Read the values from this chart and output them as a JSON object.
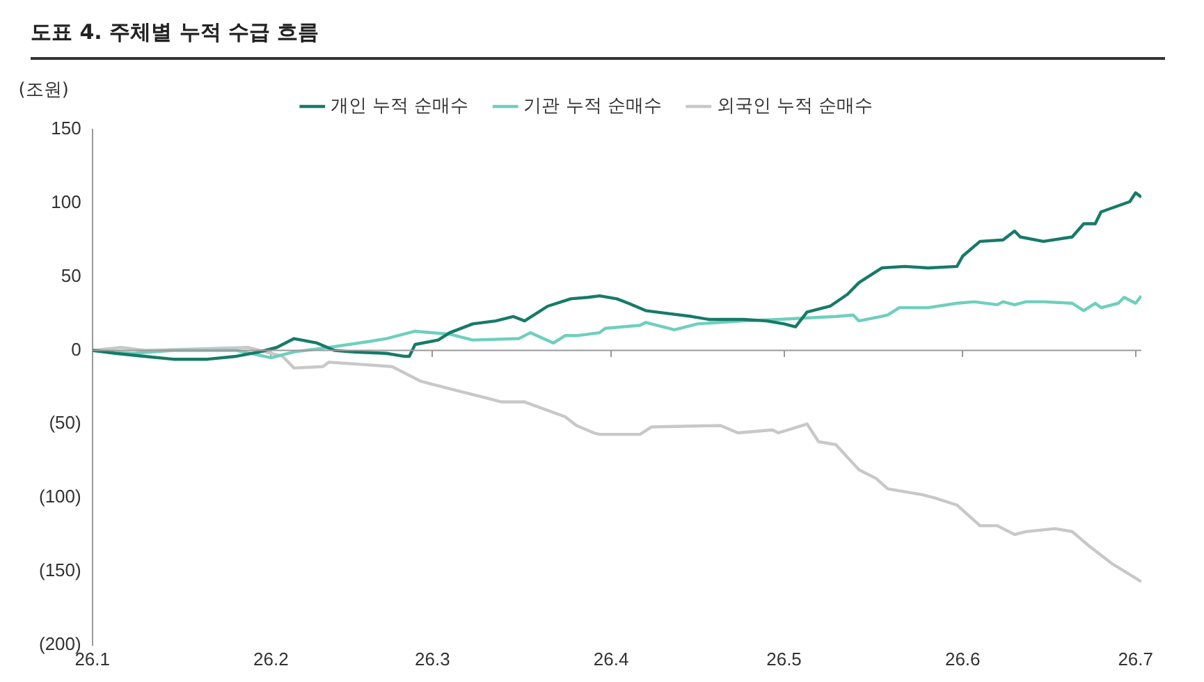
{
  "chart_data": {
    "type": "line",
    "title": "도표 4. 주체별 누적 수급 흐름",
    "ylabel": "(조원)",
    "xlim": [
      "--01-01",
      "--07-02"
    ],
    "xticks": [
      {
        "value": "--01-01",
        "label": "26.1"
      },
      {
        "value": "--02-01",
        "label": "26.2"
      },
      {
        "value": "--03-01",
        "label": "26.3"
      },
      {
        "value": "--04-01",
        "label": "26.4"
      },
      {
        "value": "--05-01",
        "label": "26.5"
      },
      {
        "value": "--06-01",
        "label": "26.6"
      },
      {
        "value": "--07-01",
        "label": "26.7"
      }
    ],
    "ylim": [
      -200,
      150
    ],
    "yticks": [
      150,
      100,
      50,
      0,
      {
        "value": -50,
        "label": "(50)"
      },
      {
        "value": -100,
        "label": "(100)"
      },
      {
        "value": -150,
        "label": "(150)"
      },
      {
        "value": -200,
        "label": "(200)"
      }
    ],
    "ref_lines": [
      {
        "axis": "y",
        "value": 0,
        "color": "#999999"
      }
    ],
    "grid": false,
    "legend": "top",
    "marker": "none",
    "line_style": "solid",
    "series": [
      {
        "name": "개인 누적 순매수",
        "color": "#177a69",
        "x": [
          "--01-01",
          "--01-05",
          "--01-10",
          "--01-15",
          "--01-21",
          "--01-26",
          "--01-30",
          "--02-02",
          "--02-05",
          "--02-09",
          "--02-12",
          "--02-15",
          "--02-21",
          "--02-24",
          "--02-25",
          "--02-26",
          "--03-02",
          "--03-04",
          "--03-08",
          "--03-12",
          "--03-15",
          "--03-17",
          "--03-21",
          "--03-25",
          "--03-28",
          "--03-30",
          "--04-02",
          "--04-04",
          "--04-07",
          "--04-11",
          "--04-15",
          "--04-18",
          "--04-24",
          "--04-28",
          "--05-01",
          "--05-03",
          "--05-05",
          "--05-09",
          "--05-12",
          "--05-14",
          "--05-18",
          "--05-22",
          "--05-26",
          "--05-31",
          "--06-01",
          "--06-04",
          "--06-08",
          "--06-10",
          "--06-11",
          "--06-15",
          "--06-20",
          "--06-22",
          "--06-24",
          "--06-25",
          "--06-30",
          "--07-01",
          "--07-02"
        ],
        "values": [
          0,
          -2,
          -4,
          -6,
          -6,
          -4,
          -1,
          2,
          8,
          5,
          0,
          -1,
          -2,
          -4,
          -4,
          4,
          7,
          12,
          18,
          20,
          23,
          20,
          30,
          35,
          36,
          37,
          35,
          32,
          27,
          25,
          23,
          21,
          21,
          20,
          18,
          16,
          26,
          30,
          38,
          46,
          56,
          57,
          56,
          57,
          64,
          74,
          75,
          81,
          77,
          74,
          77,
          86,
          86,
          94,
          101,
          107,
          104
        ]
      },
      {
        "name": "기관 누적 순매수",
        "color": "#6fcfbd",
        "x": [
          "--01-01",
          "--01-08",
          "--01-15",
          "--01-26",
          "--02-01",
          "--02-05",
          "--02-11",
          "--02-18",
          "--02-21",
          "--02-26",
          "--03-04",
          "--03-08",
          "--03-16",
          "--03-18",
          "--03-22",
          "--03-24",
          "--03-26",
          "--03-30",
          "--03-31",
          "--04-06",
          "--04-07",
          "--04-12",
          "--04-16",
          "--04-24",
          "--04-30",
          "--05-10",
          "--05-13",
          "--05-14",
          "--05-19",
          "--05-21",
          "--05-26",
          "--05-31",
          "--06-03",
          "--06-07",
          "--06-08",
          "--06-10",
          "--06-12",
          "--06-15",
          "--06-20",
          "--06-22",
          "--06-24",
          "--06-25",
          "--06-28",
          "--06-29",
          "--07-01",
          "--07-02"
        ],
        "values": [
          0,
          -2,
          0,
          0,
          -5,
          -1,
          2,
          6,
          8,
          13,
          11,
          7,
          8,
          12,
          5,
          10,
          10,
          12,
          15,
          17,
          19,
          14,
          18,
          20,
          21,
          23,
          24,
          20,
          24,
          29,
          29,
          32,
          33,
          31,
          33,
          31,
          33,
          33,
          32,
          27,
          32,
          29,
          32,
          36,
          32,
          37
        ]
      },
      {
        "name": "외국인 누적 순매수",
        "color": "#c8c8c8",
        "x": [
          "--01-01",
          "--01-06",
          "--01-10",
          "--01-28",
          "--02-03",
          "--02-05",
          "--02-10",
          "--02-11",
          "--02-22",
          "--02-27",
          "--03-04",
          "--03-10",
          "--03-13",
          "--03-17",
          "--03-24",
          "--03-26",
          "--03-29",
          "--03-30",
          "--04-06",
          "--04-08",
          "--04-20",
          "--04-23",
          "--04-29",
          "--04-30",
          "--05-05",
          "--05-07",
          "--05-10",
          "--05-14",
          "--05-17",
          "--05-19",
          "--05-25",
          "--05-27",
          "--05-31",
          "--06-04",
          "--06-07",
          "--06-10",
          "--06-12",
          "--06-17",
          "--06-20",
          "--06-23",
          "--06-27",
          "--07-02"
        ],
        "values": [
          0,
          2,
          0,
          2,
          -4,
          -12,
          -11,
          -8,
          -11,
          -21,
          -26,
          -32,
          -35,
          -35,
          -45,
          -51,
          -56,
          -57,
          -57,
          -52,
          -51,
          -56,
          -54,
          -56,
          -50,
          -62,
          -64,
          -81,
          -87,
          -94,
          -98,
          -100,
          -105,
          -119,
          -119,
          -125,
          -123,
          -121,
          -123,
          -133,
          -145,
          -157
        ]
      }
    ]
  }
}
